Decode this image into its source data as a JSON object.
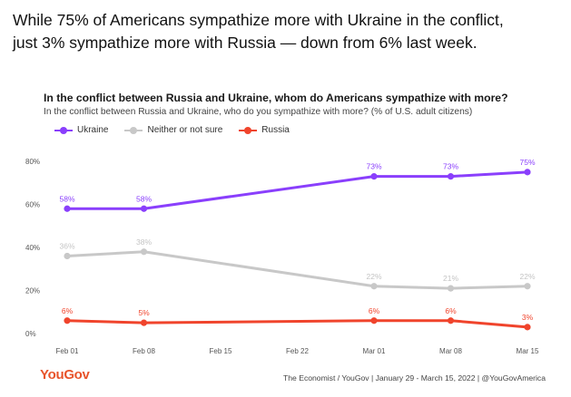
{
  "headline": {
    "line1": "While 75% of Americans sympathize more with Ukraine in the conflict,",
    "line2": "just 3% sympathize more with Russia — down from 6% last week."
  },
  "colors": {
    "ukraine": "#8a3ffc",
    "neither": "#c8c8c8",
    "russia": "#f0442c",
    "brand": "#e8542b"
  },
  "chart_data": {
    "type": "line",
    "title": "In the conflict between Russia and Ukraine, whom do Americans sympathize with more?",
    "subtitle": "In the conflict between Russia and Ukraine, who do you sympathize with more?  (% of U.S. adult citizens)",
    "x": [
      "Feb 01",
      "Feb 08",
      "Feb 15",
      "Feb 22",
      "Mar 01",
      "Mar 08",
      "Mar 15"
    ],
    "yticks": [
      "0%",
      "20%",
      "40%",
      "60%",
      "80%"
    ],
    "ylim": [
      0,
      80
    ],
    "grid": false,
    "legend_position": "top-left",
    "series": [
      {
        "name": "Ukraine",
        "color": "#8a3ffc",
        "label_color": "#8a3ffc",
        "x": [
          "Feb 01",
          "Feb 08",
          "Mar 01",
          "Mar 08",
          "Mar 15"
        ],
        "values": [
          58,
          58,
          73,
          73,
          75
        ],
        "labels": [
          "58%",
          "58%",
          "73%",
          "73%",
          "75%"
        ]
      },
      {
        "name": "Neither or not sure",
        "color": "#c8c8c8",
        "label_color": "#c4c4c4",
        "x": [
          "Feb 01",
          "Feb 08",
          "Mar 01",
          "Mar 08",
          "Mar 15"
        ],
        "values": [
          36,
          38,
          22,
          21,
          22
        ],
        "labels": [
          "36%",
          "38%",
          "22%",
          "21%",
          "22%"
        ]
      },
      {
        "name": "Russia",
        "color": "#f0442c",
        "label_color": "#f0442c",
        "x": [
          "Feb 01",
          "Feb 08",
          "Mar 01",
          "Mar 08",
          "Mar 15"
        ],
        "values": [
          6,
          5,
          6,
          6,
          3
        ],
        "labels": [
          "6%",
          "5%",
          "6%",
          "6%",
          "3%"
        ]
      }
    ]
  },
  "footer": {
    "logo": "YouGov",
    "source": "The Economist / YouGov | January 29 - March 15, 2022 | @YouGovAmerica"
  }
}
